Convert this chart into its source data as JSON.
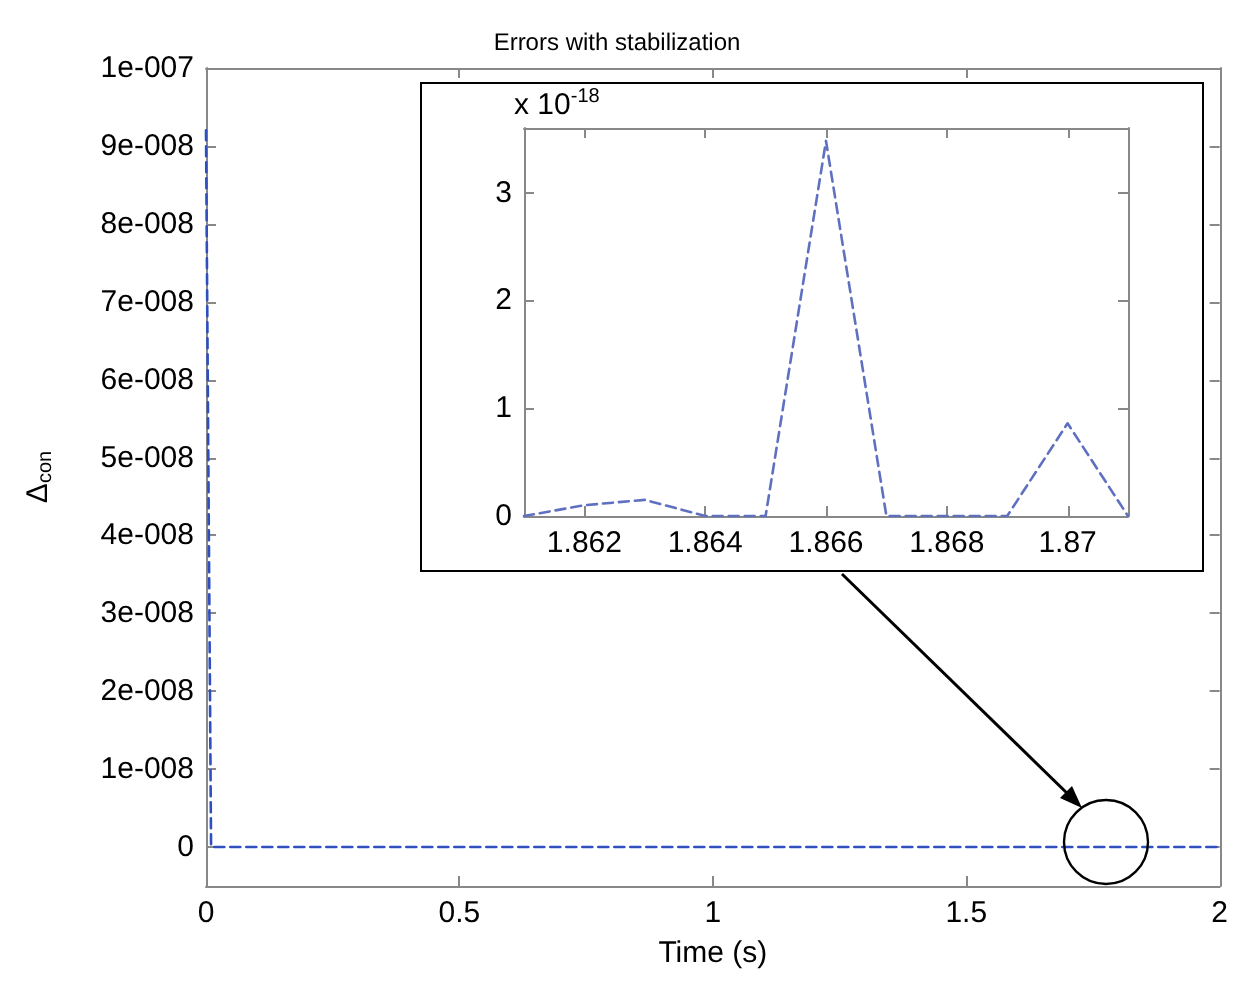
{
  "chart_data": [
    {
      "type": "line",
      "title": "Errors with stabilization",
      "xlabel": "Time (s)",
      "ylabel": "Δ$_{con}$",
      "x": [
        0,
        0.01,
        2
      ],
      "series": [
        {
          "color": "#2f4fbf",
          "values": [
            9.2e-08,
            0,
            0
          ]
        }
      ],
      "xlim": [
        0,
        2
      ],
      "xticks": [
        0,
        0.5,
        1,
        1.5,
        2
      ],
      "ylim": [
        -5e-09,
        1e-07
      ],
      "yticks": [
        {
          "value": 0,
          "label": "0"
        },
        {
          "value": 1e-08,
          "label": "1e-008"
        },
        {
          "value": 2e-08,
          "label": "2e-008"
        },
        {
          "value": 3e-08,
          "label": "3e-008"
        },
        {
          "value": 4e-08,
          "label": "4e-008"
        },
        {
          "value": 5e-08,
          "label": "5e-008"
        },
        {
          "value": 6e-08,
          "label": "6e-008"
        },
        {
          "value": 7e-08,
          "label": "7e-008"
        },
        {
          "value": 8e-08,
          "label": "8e-008"
        },
        {
          "value": 9e-08,
          "label": "9e-008"
        },
        {
          "value": 1e-07,
          "label": "1e-007"
        }
      ],
      "grid": false,
      "marker": "none",
      "line_style": "dashed"
    },
    {
      "type": "line",
      "annotations": [
        "x 10$^{-18}$"
      ],
      "x": [
        1.861,
        1.862,
        1.863,
        1.864,
        1.865,
        1.866,
        1.867,
        1.868,
        1.869,
        1.87,
        1.871
      ],
      "series": [
        {
          "color": "#6070c0",
          "values": [
            0,
            0.1,
            0.15,
            0,
            0,
            3.48,
            0,
            0,
            0,
            0.86,
            0
          ]
        }
      ],
      "xlim": [
        1.861,
        1.871
      ],
      "xticks": [
        1.862,
        1.864,
        1.866,
        1.868,
        1.87
      ],
      "ylim": [
        0,
        3.6
      ],
      "yticks": [
        0,
        1,
        2,
        3
      ],
      "grid": false,
      "marker": "none",
      "line_style": "dashed"
    }
  ]
}
